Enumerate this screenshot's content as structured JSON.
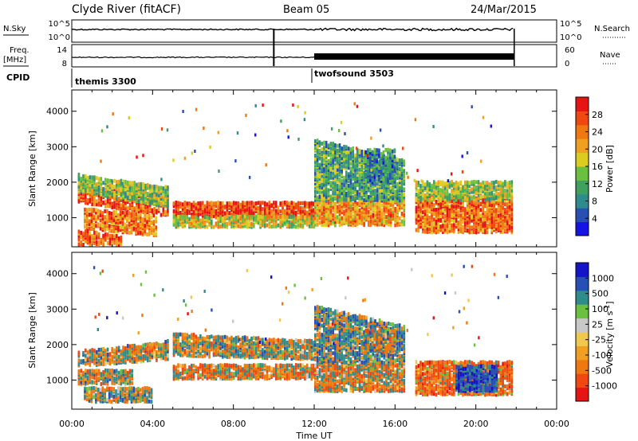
{
  "header": {
    "site": "Clyde River (fitACF)",
    "beam": "Beam 05",
    "date": "24/Mar/2015"
  },
  "sky_panel": {
    "left_label": "N.Sky",
    "left_ticks": [
      "10^5",
      "10^0"
    ],
    "right_ticks": [
      "10^5",
      "10^0"
    ],
    "right_label": "N.Search"
  },
  "freq_panel": {
    "left_label_top": "Freq.",
    "left_label_bottom": "[MHz]",
    "left_ticks": [
      "14",
      "8"
    ],
    "right_ticks": [
      "60",
      "0"
    ],
    "right_label": "Nave"
  },
  "cpid": {
    "label": "CPID",
    "modes": [
      {
        "name": "themis 3300",
        "start_hour": 0
      },
      {
        "name": "twofsound 3503",
        "start_hour": 12
      }
    ]
  },
  "time_axis": {
    "label": "Time UT",
    "range_hours": [
      0,
      24
    ],
    "ticks": [
      "00:00",
      "04:00",
      "08:00",
      "12:00",
      "16:00",
      "20:00",
      "00:00"
    ]
  },
  "colors": {
    "power_scale": [
      "#1414e6",
      "#2850b4",
      "#2e8c8c",
      "#40a060",
      "#6cc040",
      "#dccc20",
      "#f0a020",
      "#f07810",
      "#f04810",
      "#e61414"
    ],
    "velocity_scale": [
      "#e61414",
      "#f04810",
      "#f07810",
      "#f0a020",
      "#f0c850",
      "#c8c8c8",
      "#6cc040",
      "#2e8c8c",
      "#2850b4",
      "#1414c8"
    ]
  },
  "chart_data": [
    {
      "type": "heatmap",
      "panel": "power",
      "ylabel": "Slant Range [km]",
      "ylim": [
        180,
        4600
      ],
      "yticks": [
        "1000",
        "2000",
        "3000",
        "4000"
      ],
      "colorbar": {
        "label": "Power [dB]",
        "ticks": [
          "4",
          "8",
          "12",
          "16",
          "20",
          "24",
          "28"
        ],
        "range": [
          0,
          32
        ]
      },
      "bands": [
        {
          "x": [
            0.3,
            4.8
          ],
          "y_start": [
            1450,
            1900
          ],
          "y_end": [
            1050,
            1600
          ],
          "width": 220,
          "value": 27
        },
        {
          "x": [
            0.3,
            4.8
          ],
          "y_start": [
            1750,
            2200
          ],
          "y_end": [
            1300,
            1850
          ],
          "width": 200,
          "value": 14
        },
        {
          "x": [
            0.6,
            4.2
          ],
          "y_start": [
            700,
            1250
          ],
          "y_end": [
            500,
            1050
          ],
          "width": 160,
          "value": 24
        },
        {
          "x": [
            0.3,
            2.5
          ],
          "y_start": [
            250,
            650
          ],
          "y_end": [
            250,
            450
          ],
          "width": 180,
          "value": 26
        },
        {
          "x": [
            5.0,
            12.0
          ],
          "y_start": [
            1050,
            1450
          ],
          "y_end": [
            1050,
            1450
          ],
          "width": 380,
          "value": 28
        },
        {
          "x": [
            5.0,
            12.0
          ],
          "y_start": [
            750,
            1050
          ],
          "y_end": [
            750,
            1050
          ],
          "width": 200,
          "value": 18
        },
        {
          "x": [
            12.0,
            16.5
          ],
          "y_start": [
            800,
            1600
          ],
          "y_end": [
            800,
            1600
          ],
          "width": 700,
          "value": 22
        },
        {
          "x": [
            12.0,
            16.5
          ],
          "y_start": [
            1500,
            3200
          ],
          "y_end": [
            1500,
            2600
          ],
          "width": 900,
          "value": 11
        },
        {
          "x": [
            14.5,
            16.0
          ],
          "y_start": [
            2000,
            2900
          ],
          "y_end": [
            2000,
            2900
          ],
          "width": 600,
          "value": 9
        },
        {
          "x": [
            17.0,
            21.8
          ],
          "y_start": [
            600,
            1600
          ],
          "y_end": [
            600,
            1600
          ],
          "width": 700,
          "value": 25
        },
        {
          "x": [
            17.0,
            21.8
          ],
          "y_start": [
            1500,
            2000
          ],
          "y_end": [
            1500,
            2000
          ],
          "width": 300,
          "value": 15
        }
      ]
    },
    {
      "type": "heatmap",
      "panel": "velocity",
      "ylabel": "Slant Range [km]",
      "ylim": [
        180,
        4600
      ],
      "yticks": [
        "1000",
        "2000",
        "3000",
        "4000"
      ],
      "colorbar": {
        "label": "Velocity [m s^-1]",
        "ticks": [
          "-1000",
          "-500",
          "-100",
          "-25",
          "25",
          "100",
          "500",
          "1000"
        ]
      },
      "bands": [
        {
          "x": [
            0.3,
            4.8
          ],
          "y_start": [
            1400,
            1800
          ],
          "y_end": [
            1600,
            2100
          ],
          "width": 300,
          "value": 0
        },
        {
          "x": [
            0.3,
            3.0
          ],
          "y_start": [
            900,
            1300
          ],
          "y_end": [
            900,
            1300
          ],
          "width": 300,
          "value": -30
        },
        {
          "x": [
            0.6,
            4.0
          ],
          "y_start": [
            400,
            800
          ],
          "y_end": [
            400,
            800
          ],
          "width": 200,
          "value": 60
        },
        {
          "x": [
            5.0,
            12.0
          ],
          "y_start": [
            1050,
            1450
          ],
          "y_end": [
            1050,
            1450
          ],
          "width": 400,
          "value": -300
        },
        {
          "x": [
            5.0,
            12.0
          ],
          "y_start": [
            1700,
            2300
          ],
          "y_end": [
            1600,
            2100
          ],
          "width": 400,
          "value": 0
        },
        {
          "x": [
            12.0,
            16.5
          ],
          "y_start": [
            700,
            1500
          ],
          "y_end": [
            700,
            1500
          ],
          "width": 700,
          "value": -150
        },
        {
          "x": [
            12.0,
            16.5
          ],
          "y_start": [
            1500,
            3100
          ],
          "y_end": [
            1500,
            2500
          ],
          "width": 900,
          "value": 200
        },
        {
          "x": [
            14.5,
            16.0
          ],
          "y_start": [
            1800,
            2400
          ],
          "y_end": [
            1800,
            2400
          ],
          "width": 500,
          "value": 0
        },
        {
          "x": [
            17.0,
            21.8
          ],
          "y_start": [
            600,
            1500
          ],
          "y_end": [
            600,
            1500
          ],
          "width": 700,
          "value": -450
        },
        {
          "x": [
            19.0,
            21.0
          ],
          "y_start": [
            700,
            1400
          ],
          "y_end": [
            700,
            1400
          ],
          "width": 400,
          "value": 700
        }
      ]
    }
  ]
}
